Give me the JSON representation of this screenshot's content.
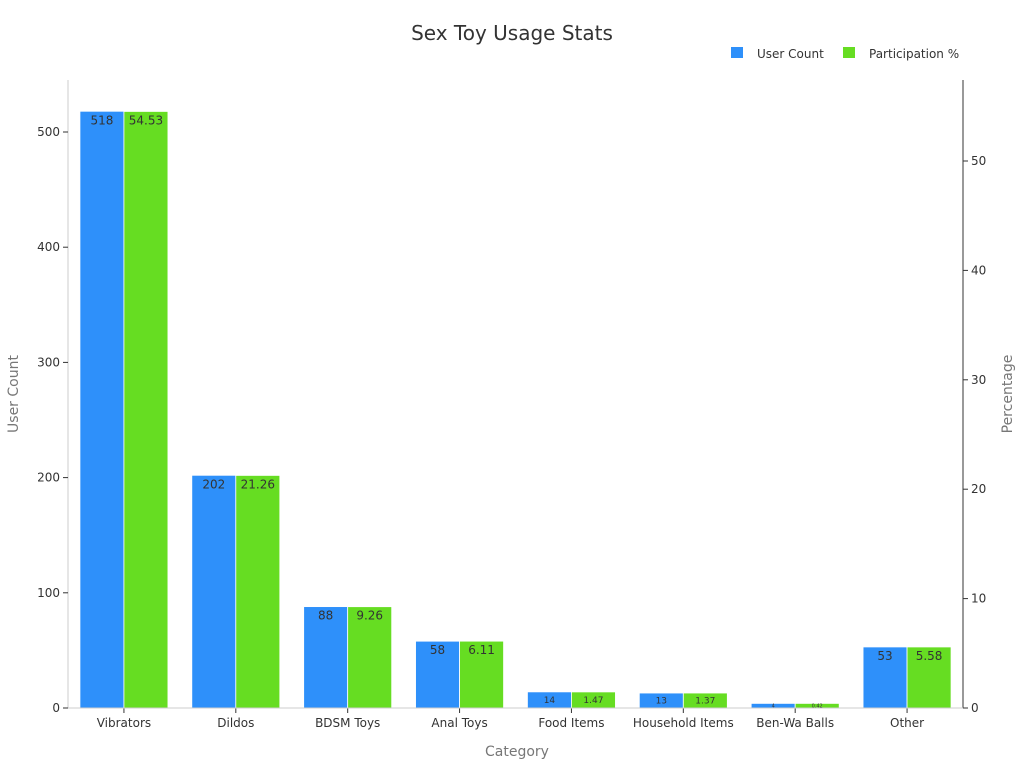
{
  "chart_data": {
    "type": "bar",
    "title": "Sex Toy Usage Stats",
    "xlabel": "Category",
    "ylabel": "User Count",
    "y2label": "Percentage",
    "categories": [
      "Vibrators",
      "Dildos",
      "BDSM Toys",
      "Anal Toys",
      "Food Items",
      "Household Items",
      "Ben-Wa Balls",
      "Other"
    ],
    "series": [
      {
        "name": "User Count",
        "axis": "left",
        "color": "#2e90fa",
        "values": [
          518,
          202,
          88,
          58,
          14,
          13,
          4,
          53
        ],
        "labels": [
          "518",
          "202",
          "88",
          "58",
          "14",
          "13",
          "4",
          "53"
        ]
      },
      {
        "name": "Participation %",
        "axis": "right",
        "color": "#66dd22",
        "values": [
          54.53,
          21.26,
          9.26,
          6.11,
          1.47,
          1.37,
          0.42,
          5.58
        ],
        "labels": [
          "54.53",
          "21.26",
          "9.26",
          "6.11",
          "1.47",
          "1.37",
          "0.42",
          "5.58"
        ]
      }
    ],
    "ylim": [
      0,
      545
    ],
    "y2lim": [
      0,
      57.4
    ],
    "yticks": [
      0,
      100,
      200,
      300,
      400,
      500
    ],
    "y2ticks": [
      0,
      10,
      20,
      30,
      40,
      50
    ],
    "grid": false,
    "legend_position": "top-right"
  }
}
